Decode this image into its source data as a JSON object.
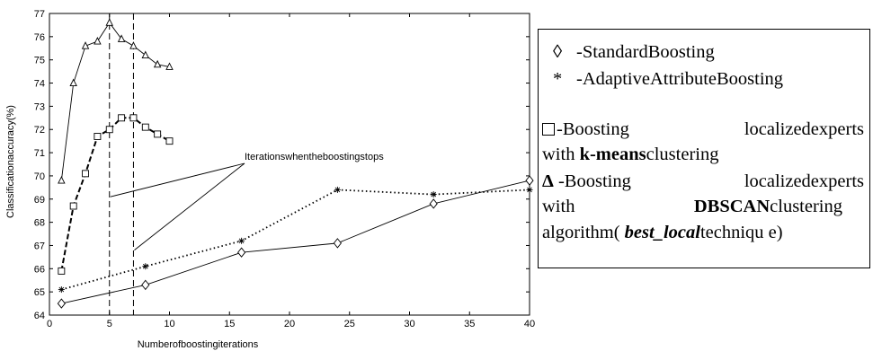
{
  "chart_data": {
    "type": "line",
    "xlabel": "Numberofboostingiterations",
    "ylabel": "Classificationaccuracy(%)",
    "xlim": [
      0,
      40
    ],
    "ylim": [
      64,
      77
    ],
    "xticks": [
      0,
      5,
      10,
      15,
      20,
      25,
      30,
      35,
      40
    ],
    "yticks": [
      64,
      65,
      66,
      67,
      68,
      69,
      70,
      71,
      72,
      73,
      74,
      75,
      76,
      77
    ],
    "grid": false,
    "legend_position": "right, outside plot",
    "series": [
      {
        "marker": "diamond",
        "line": "solid",
        "x": [
          1,
          8,
          16,
          24,
          32,
          40
        ],
        "y": [
          64.5,
          65.3,
          66.7,
          67.1,
          68.8,
          69.8
        ]
      },
      {
        "marker": "asterisk",
        "line": "dotted",
        "x": [
          1,
          8,
          16,
          24,
          32,
          40
        ],
        "y": [
          65.1,
          66.1,
          67.2,
          69.4,
          69.2,
          69.4
        ]
      },
      {
        "marker": "square",
        "line": "dashed",
        "x": [
          1,
          2,
          3,
          4,
          5,
          6,
          7,
          8,
          9,
          10
        ],
        "y": [
          65.9,
          68.7,
          70.1,
          71.7,
          72.0,
          72.5,
          72.5,
          72.1,
          71.8,
          71.5
        ]
      },
      {
        "marker": "triangle",
        "line": "solid",
        "x": [
          1,
          2,
          3,
          4,
          5,
          6,
          7,
          8,
          9,
          10
        ],
        "y": [
          69.8,
          74.0,
          75.6,
          75.8,
          76.6,
          75.9,
          75.6,
          75.2,
          74.8,
          74.7
        ]
      }
    ],
    "vlines": [
      5,
      7
    ],
    "annotation": {
      "text": "Iterationswhentheboostingstops",
      "targets": [
        [
          5,
          69.1
        ],
        [
          7,
          66.8
        ]
      ]
    }
  },
  "legend": {
    "entry1": {
      "symbol": "◊",
      "text": "-StandardBoosting"
    },
    "entry2": {
      "symbol": "*",
      "text": "-AdaptiveAttributeBoosting"
    },
    "entry3": {
      "w1": "-Boosting",
      "w2": "localizedexperts",
      "l2a": "with ",
      "l2b": "k-means",
      "l2c": "clustering"
    },
    "entry4": {
      "symbol": "Δ",
      "w1": "-Boosting",
      "w2": "localizedexperts",
      "l2a": "with",
      "l2b": "DBSCAN",
      "l2c": "clustering",
      "l3a": "algorithm( ",
      "l3b": "best_local",
      "l3c": "techniqu e)"
    }
  },
  "colors": {
    "ink": "#000000",
    "background": "#ffffff"
  }
}
